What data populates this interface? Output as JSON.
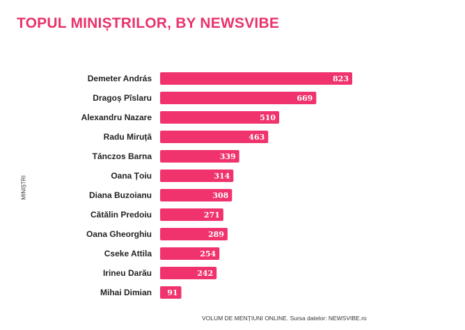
{
  "chart_data": {
    "type": "bar",
    "orientation": "horizontal",
    "title": "TOPUL MINIȘTRILOR, BY NEWSVIBE",
    "ylabel": "MINIȘTRI",
    "xlabel": "VOLUM DE MENȚIUNI ONLINE. Sursa datelor: NEWSVIBE.ro",
    "categories": [
      "Demeter András",
      "Dragoș Pîslaru",
      "Alexandru Nazare",
      "Radu Miruță",
      "Tánczos Barna",
      "Oana Țoiu",
      "Diana Buzoianu",
      "Cătălin Predoiu",
      "Oana Gheorghiu",
      "Cseke Attila",
      "Irineu Darău",
      "Mihai Dimian"
    ],
    "values": [
      823,
      669,
      510,
      463,
      339,
      314,
      308,
      271,
      289,
      254,
      242,
      91
    ],
    "xlim": [
      0,
      823
    ],
    "bar_color": "#f0336d",
    "grid": false,
    "legend": "none"
  }
}
